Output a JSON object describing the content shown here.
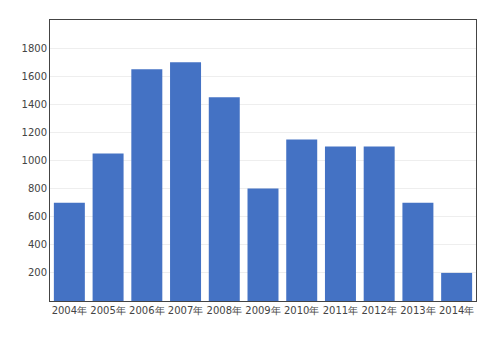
{
  "chart_data": {
    "type": "bar",
    "categories": [
      "2004年",
      "2005年",
      "2006年",
      "2007年",
      "2008年",
      "2009年",
      "2010年",
      "2011年",
      "2012年",
      "2013年",
      "2014年"
    ],
    "values": [
      700,
      1050,
      1650,
      1700,
      1450,
      800,
      1150,
      1100,
      1100,
      700,
      200
    ],
    "color": "#4472c4",
    "ylim": [
      0,
      2000
    ],
    "yticks": [
      200,
      400,
      600,
      800,
      1000,
      1200,
      1400,
      1600,
      1800
    ],
    "grid": true
  }
}
